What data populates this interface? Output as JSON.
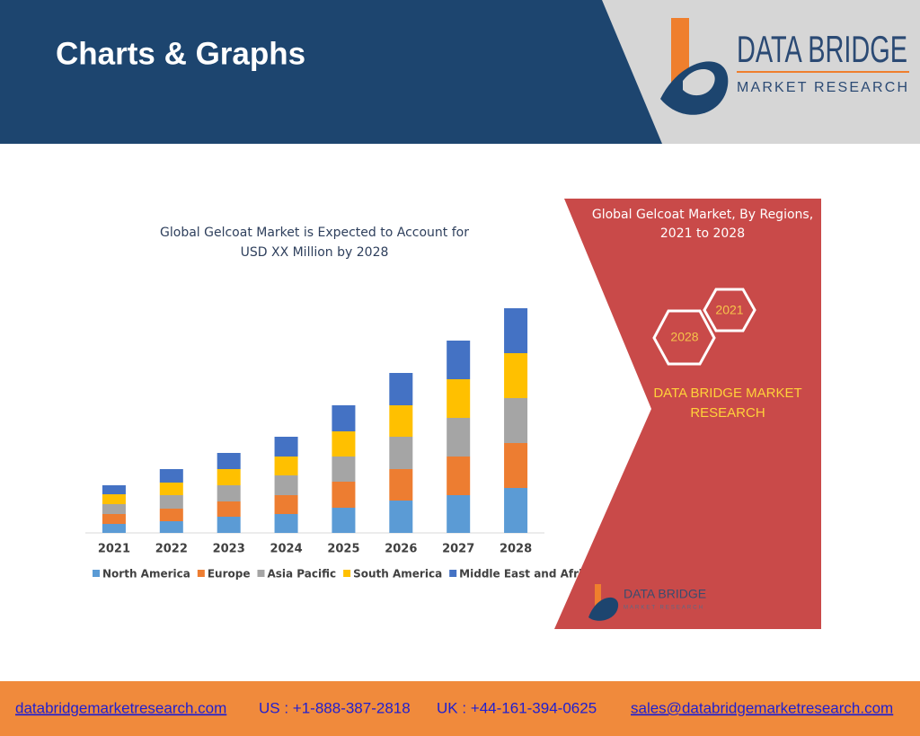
{
  "header": {
    "title": "Charts & Graphs",
    "logo": {
      "name": "DATA BRIDGE",
      "tagline": "MARKET RESEARCH"
    }
  },
  "chart_data": {
    "type": "bar",
    "stacked": true,
    "title": [
      "Global Gelcoat Market is Expected to Account for",
      "USD XX Million by 2028"
    ],
    "categories": [
      "2021",
      "2022",
      "2023",
      "2024",
      "2025",
      "2026",
      "2027",
      "2028"
    ],
    "series": [
      {
        "name": "North America",
        "color": "#5b9bd5",
        "values": [
          10,
          13,
          18,
          21,
          28,
          36,
          42,
          50
        ]
      },
      {
        "name": "Europe",
        "color": "#ed7d31",
        "values": [
          11,
          14,
          17,
          21,
          29,
          35,
          43,
          50
        ]
      },
      {
        "name": "Asia Pacific",
        "color": "#a5a5a5",
        "values": [
          11,
          15,
          18,
          22,
          28,
          36,
          43,
          50
        ]
      },
      {
        "name": "South America",
        "color": "#ffc000",
        "values": [
          11,
          14,
          18,
          21,
          28,
          35,
          43,
          50
        ]
      },
      {
        "name": "Middle East and Africa",
        "color": "#4472c4",
        "values": [
          10,
          15,
          18,
          22,
          29,
          36,
          43,
          50
        ]
      }
    ],
    "ylim": [
      0,
      260
    ]
  },
  "panel": {
    "title": [
      "Global Gelcoat Market, By Regions,",
      "2021 to 2028"
    ],
    "hexagons": [
      "2021",
      "2028"
    ],
    "brand": [
      "DATA BRIDGE MARKET",
      "RESEARCH"
    ],
    "logo": {
      "name": "DATA BRIDGE",
      "tagline": "MARKET RESEARCH"
    }
  },
  "footer": {
    "website": "databridgemarketresearch.com",
    "us": "US : +1-888-387-2818",
    "uk": "UK : +44-161-394-0625",
    "email": "sales@databridgemarketresearch.com"
  }
}
